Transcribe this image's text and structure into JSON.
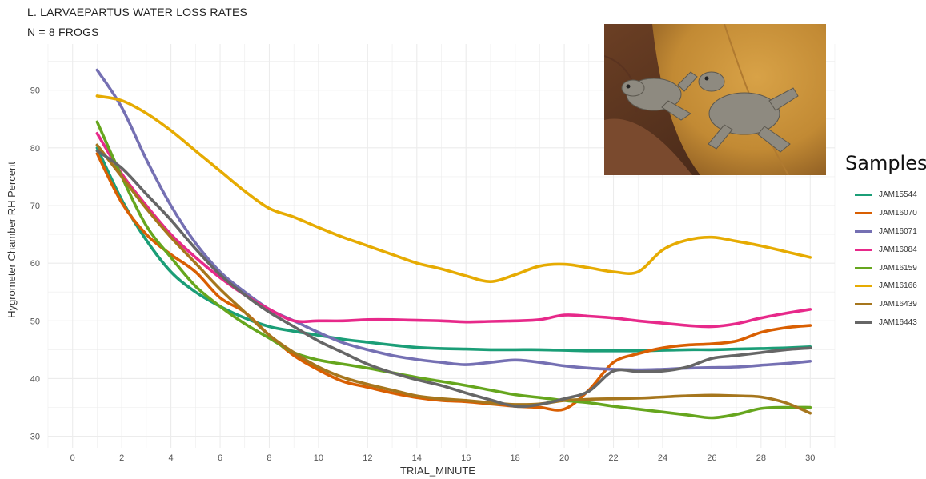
{
  "chart_data": {
    "type": "line",
    "title": "L. LARVAEPARTUS WATER LOSS RATES",
    "subtitle": "N = 8 FROGS",
    "xlabel": "TRIAL_MINUTE",
    "ylabel": "Hygrometer Chamber RH Percent",
    "xlim": [
      -1,
      31
    ],
    "ylim": [
      28,
      98
    ],
    "xticks": [
      0,
      2,
      4,
      6,
      8,
      10,
      12,
      14,
      16,
      18,
      20,
      22,
      24,
      26,
      28,
      30
    ],
    "yticks": [
      30,
      40,
      50,
      60,
      70,
      80,
      90
    ],
    "grid": true,
    "legend_title": "Samples",
    "legend_position": "right",
    "x": [
      1,
      2,
      3,
      4,
      5,
      6,
      7,
      8,
      9,
      10,
      11,
      12,
      13,
      14,
      15,
      16,
      17,
      18,
      19,
      20,
      21,
      22,
      23,
      24,
      25,
      26,
      27,
      28,
      29,
      30
    ],
    "series": [
      {
        "name": "JAM15544",
        "color": "#1b9e77",
        "values": [
          80,
          71,
          64,
          58.5,
          55,
          52.5,
          50.5,
          49,
          48.2,
          47.5,
          46.8,
          46.3,
          45.8,
          45.4,
          45.2,
          45.1,
          45,
          45,
          45,
          44.9,
          44.8,
          44.8,
          44.8,
          44.9,
          45,
          45,
          45.1,
          45.2,
          45.3,
          45.5
        ]
      },
      {
        "name": "JAM16070",
        "color": "#d95f02",
        "values": [
          79,
          70.5,
          65,
          61.5,
          58.5,
          54,
          51.5,
          47.5,
          44,
          41.5,
          39.5,
          38.5,
          37.5,
          36.7,
          36.2,
          36,
          35.6,
          35.2,
          35,
          34.7,
          38,
          42.8,
          44.3,
          45.3,
          45.8,
          46,
          46.5,
          48,
          48.8,
          49.2
        ]
      },
      {
        "name": "JAM16071",
        "color": "#7570b3",
        "values": [
          93.5,
          87,
          78,
          70,
          63.5,
          58.5,
          55,
          52,
          50,
          48,
          46.2,
          45,
          44,
          43.3,
          42.8,
          42.4,
          42.8,
          43.2,
          42.8,
          42.2,
          41.8,
          41.6,
          41.5,
          41.6,
          41.8,
          41.9,
          42,
          42.3,
          42.6,
          43
        ]
      },
      {
        "name": "JAM16084",
        "color": "#e7298a",
        "values": [
          82.5,
          75.5,
          70,
          65,
          61,
          57.5,
          54.5,
          52,
          50,
          50,
          50,
          50.2,
          50.2,
          50.1,
          50,
          49.8,
          49.9,
          50,
          50.2,
          51,
          50.8,
          50.5,
          50,
          49.6,
          49.2,
          49,
          49.5,
          50.5,
          51.3,
          52
        ]
      },
      {
        "name": "JAM16159",
        "color": "#66a61e",
        "values": [
          84.5,
          75,
          66.5,
          61,
          56,
          52.5,
          49.5,
          47,
          44.5,
          43.2,
          42.5,
          41.8,
          41,
          40.2,
          39.5,
          38.8,
          38,
          37.2,
          36.7,
          36.2,
          35.8,
          35.2,
          34.7,
          34.2,
          33.7,
          33.2,
          33.8,
          34.8,
          35,
          35
        ]
      },
      {
        "name": "JAM16166",
        "color": "#e6ab02",
        "values": [
          89,
          88.2,
          86,
          83,
          79.5,
          76,
          72.5,
          69.5,
          68,
          66.2,
          64.5,
          63,
          61.5,
          60,
          59,
          57.8,
          56.8,
          58,
          59.5,
          59.8,
          59.2,
          58.5,
          58.5,
          62.3,
          64,
          64.5,
          63.8,
          63,
          62,
          61
        ]
      },
      {
        "name": "JAM16439",
        "color": "#a6761d",
        "values": [
          80.5,
          75,
          69.5,
          64.5,
          60,
          55.5,
          51.5,
          47.5,
          44.5,
          42,
          40.2,
          39,
          38,
          37,
          36.5,
          36.2,
          35.8,
          35.5,
          35.6,
          36.2,
          36.4,
          36.5,
          36.6,
          36.8,
          37,
          37.1,
          37,
          36.8,
          35.8,
          34
        ]
      },
      {
        "name": "JAM16443",
        "color": "#666666",
        "values": [
          79.5,
          76.5,
          72,
          67.5,
          62.5,
          58,
          54.5,
          51.5,
          49,
          46.5,
          44.5,
          42.5,
          41,
          39.8,
          38.8,
          37.5,
          36.3,
          35.2,
          35.5,
          36.5,
          37.8,
          41.3,
          41.2,
          41.3,
          42,
          43.5,
          44,
          44.5,
          45,
          45.3
        ]
      }
    ]
  }
}
